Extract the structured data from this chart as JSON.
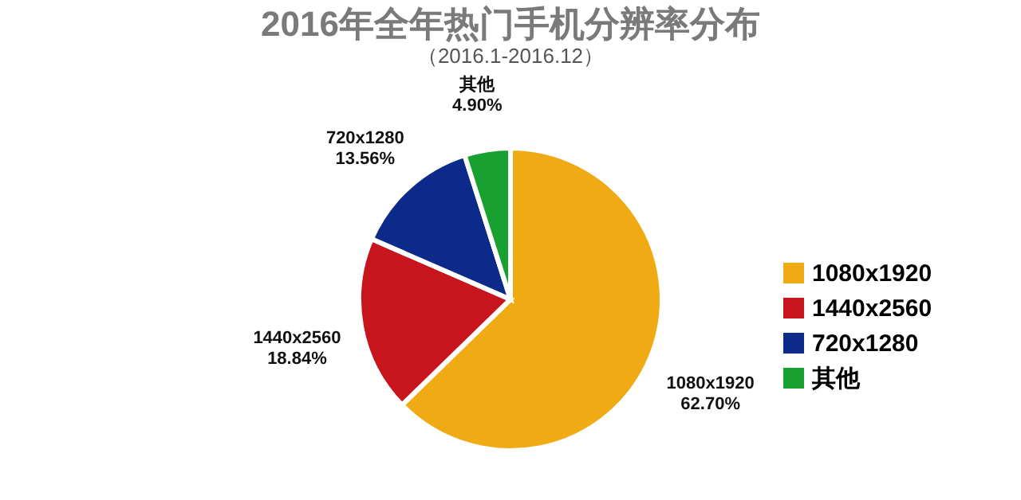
{
  "chart_data": {
    "type": "pie",
    "title": "2016年全年热门手机分辨率分布",
    "subtitle": "（2016.1-2016.12）",
    "categories": [
      "1080x1920",
      "1440x2560",
      "720x1280",
      "其他"
    ],
    "values": [
      62.7,
      18.84,
      13.56,
      4.9
    ],
    "value_labels": [
      "62.70%",
      "18.84%",
      "13.56%",
      "4.90%"
    ],
    "colors": [
      "#f0aa14",
      "#c8141c",
      "#0c2a8a",
      "#18a030"
    ],
    "legend": "right"
  }
}
